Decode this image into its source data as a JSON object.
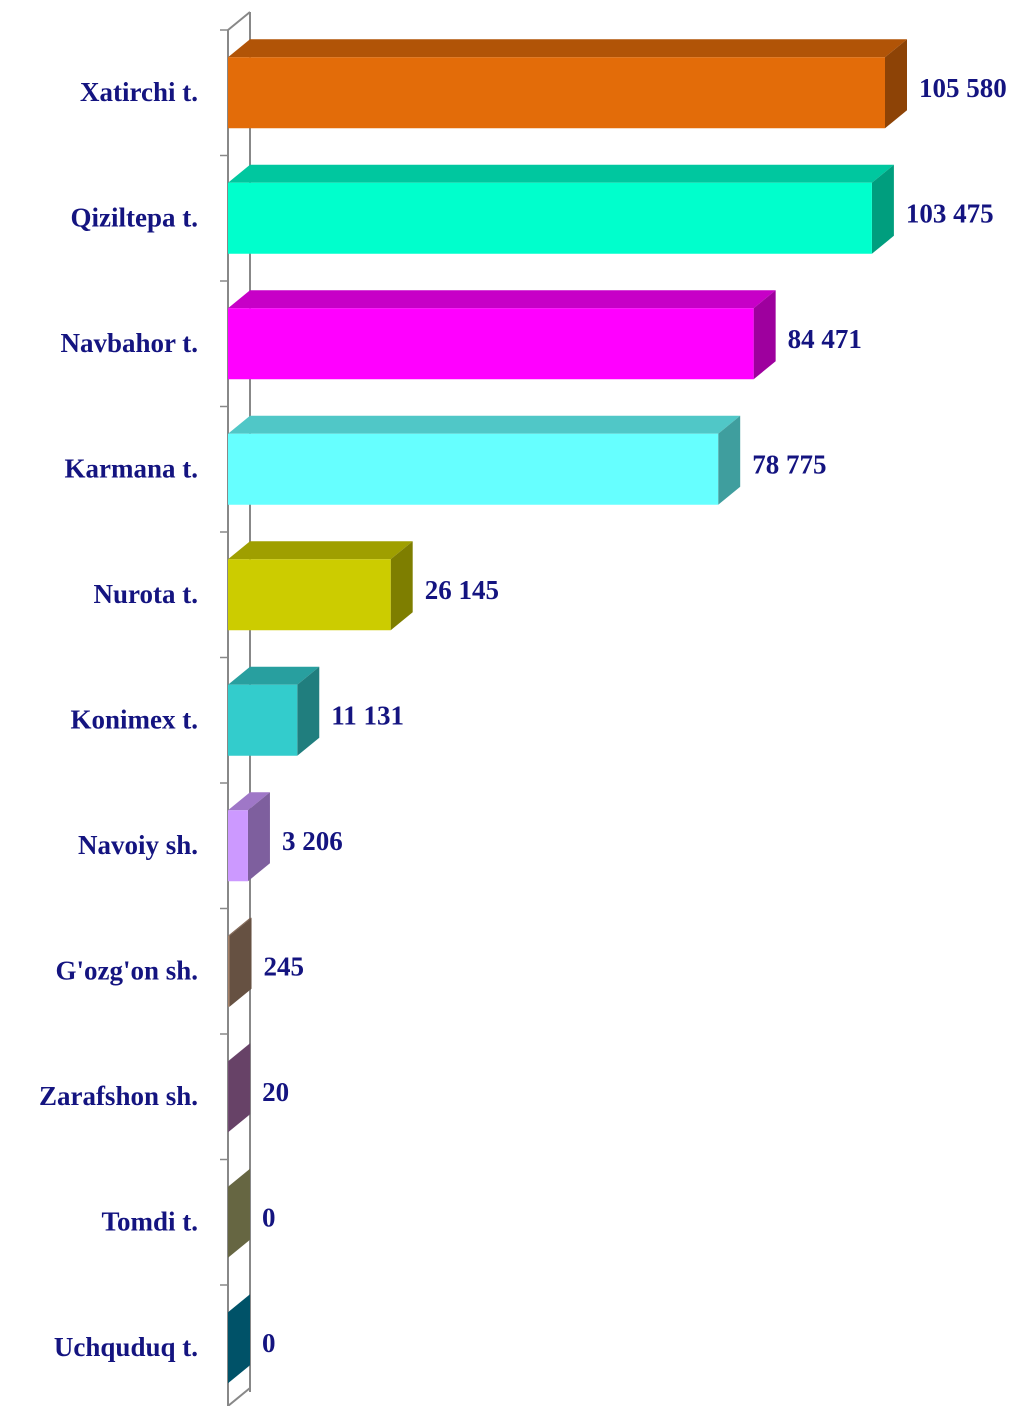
{
  "chart_data": {
    "type": "bar3d_horizontal",
    "categories": [
      "Xatirchi t.",
      "Qiziltepa t.",
      "Navbahor t.",
      "Karmana t.",
      "Nurota t.",
      "Konimex t.",
      "Navoiy sh.",
      "G'ozg'on sh.",
      "Zarafshon sh.",
      "Tomdi t.",
      "Uchquduq t."
    ],
    "values": [
      105580,
      103475,
      84471,
      78775,
      26145,
      11131,
      3206,
      245,
      20,
      0,
      0
    ],
    "value_labels": [
      "105 580",
      "103 475",
      "84 471",
      "78 775",
      "26 145",
      "11 131",
      "3 206",
      "245",
      "20",
      "0",
      "0"
    ],
    "colors": [
      "#e36c09",
      "#00ffcc",
      "#ff00ff",
      "#66ffff",
      "#cccc00",
      "#33cccc",
      "#cc99ff",
      "#a5826a",
      "#a66aa6",
      "#a5a56a",
      "#0085a8"
    ]
  }
}
